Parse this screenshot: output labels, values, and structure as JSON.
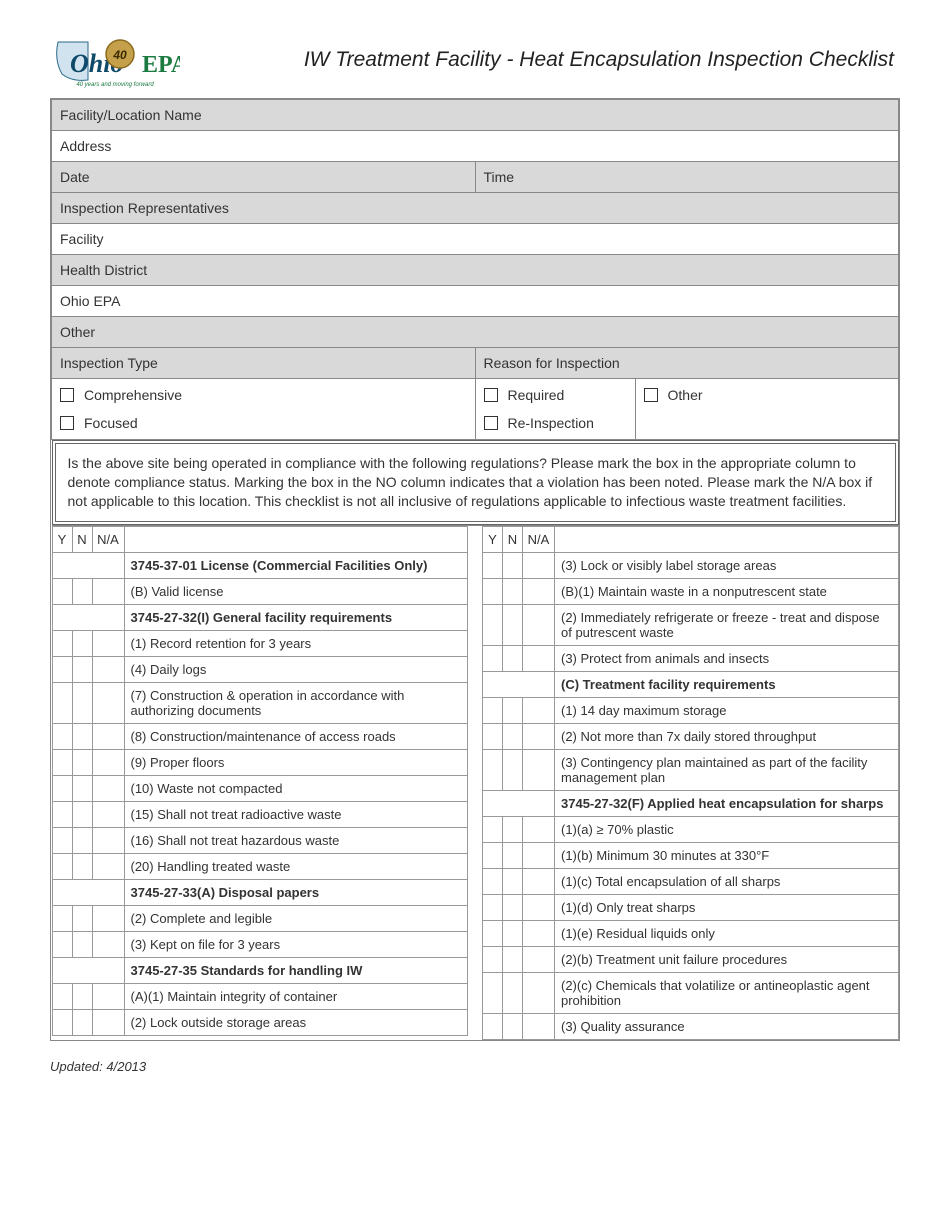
{
  "header": {
    "title": "IW Treatment Facility - Heat Encapsulation Inspection Checklist",
    "logo_text_main": "Ohio",
    "logo_text_sub": "EPA",
    "logo_tagline": "40 years and moving forward"
  },
  "info_rows": [
    {
      "label": "Facility/Location Name",
      "gray": true,
      "cols": 2
    },
    {
      "label": "Address",
      "gray": false,
      "cols": 2
    },
    {
      "split": true,
      "left": "Date",
      "right": "Time",
      "gray": true
    },
    {
      "label": "Inspection Representatives",
      "gray": true,
      "cols": 2
    },
    {
      "label": "Facility",
      "gray": false,
      "cols": 2
    },
    {
      "label": "Health District",
      "gray": true,
      "cols": 2
    },
    {
      "label": "Ohio EPA",
      "gray": false,
      "cols": 2
    },
    {
      "label": "Other",
      "gray": true,
      "cols": 2
    }
  ],
  "inspection_header": {
    "left": "Inspection Type",
    "right": "Reason for Inspection"
  },
  "inspection_opts": {
    "col1": [
      "Comprehensive",
      "Focused"
    ],
    "col2": [
      "Required",
      "Re-Inspection"
    ],
    "col3": [
      "Other"
    ]
  },
  "instructions": "Is the above site being operated  in compliance with the following regulations?  Please mark the box in the appropriate column to denote compliance status.  Marking the box in the NO column indicates that a violation has been noted.  Please mark the N/A box if not applicable to this location.  This checklist is not all inclusive of regulations applicable to infectious waste treatment facilities.",
  "cols_head": {
    "y": "Y",
    "n": "N",
    "na": "N/A"
  },
  "left_items": [
    {
      "type": "section",
      "text": "3745-37-01 License (Commercial Facilities Only)"
    },
    {
      "type": "item",
      "text": "(B) Valid license"
    },
    {
      "type": "section",
      "text": "3745-27-32(I) General facility requirements"
    },
    {
      "type": "item",
      "text": "(1) Record retention for 3 years"
    },
    {
      "type": "item",
      "text": "(4) Daily logs"
    },
    {
      "type": "item",
      "text": "(7) Construction & operation in accordance with authorizing documents"
    },
    {
      "type": "item",
      "text": "(8) Construction/maintenance of access roads"
    },
    {
      "type": "item",
      "text": "(9) Proper floors"
    },
    {
      "type": "item",
      "text": "(10) Waste not compacted"
    },
    {
      "type": "item",
      "text": "(15) Shall not treat radioactive waste"
    },
    {
      "type": "item",
      "text": "(16) Shall not treat hazardous waste"
    },
    {
      "type": "item",
      "text": "(20) Handling treated waste"
    },
    {
      "type": "section",
      "text": "3745-27-33(A) Disposal papers"
    },
    {
      "type": "item",
      "text": "(2) Complete and legible"
    },
    {
      "type": "item",
      "text": "(3) Kept on file for 3 years"
    },
    {
      "type": "section",
      "text": "3745-27-35 Standards for handling IW"
    },
    {
      "type": "item",
      "text": "(A)(1) Maintain integrity of container"
    },
    {
      "type": "item",
      "text": "(2) Lock outside storage areas"
    }
  ],
  "right_items": [
    {
      "type": "item",
      "text": "(3) Lock or visibly label storage areas"
    },
    {
      "type": "item",
      "text": "(B)(1) Maintain waste in a nonputrescent state"
    },
    {
      "type": "item",
      "text": "(2) Immediately refrigerate or freeze - treat and dispose of putrescent waste"
    },
    {
      "type": "item",
      "text": "(3) Protect from animals and insects"
    },
    {
      "type": "section",
      "text": "(C) Treatment facility requirements"
    },
    {
      "type": "item",
      "text": "(1) 14 day maximum storage"
    },
    {
      "type": "item",
      "text": "(2) Not more than 7x daily stored throughput"
    },
    {
      "type": "item",
      "text": "(3) Contingency plan maintained as part of the facility management plan"
    },
    {
      "type": "section",
      "text": "3745-27-32(F) Applied heat encapsulation for sharps"
    },
    {
      "type": "item",
      "text": "(1)(a) ≥ 70% plastic"
    },
    {
      "type": "item",
      "text": "(1)(b) Minimum 30 minutes at 330°F"
    },
    {
      "type": "item",
      "text": "(1)(c) Total encapsulation of all sharps"
    },
    {
      "type": "item",
      "text": "(1)(d) Only treat sharps"
    },
    {
      "type": "item",
      "text": "(1)(e) Residual liquids only"
    },
    {
      "type": "item",
      "text": "(2)(b) Treatment unit failure procedures"
    },
    {
      "type": "item",
      "text": "(2)(c)  Chemicals that volatilize or antineoplastic agent prohibition"
    },
    {
      "type": "item",
      "text": "(3) Quality assurance"
    }
  ],
  "footer": "Updated: 4/2013",
  "colors": {
    "gray_bg": "#d9d9d9",
    "border": "#888888",
    "text": "#333333"
  }
}
